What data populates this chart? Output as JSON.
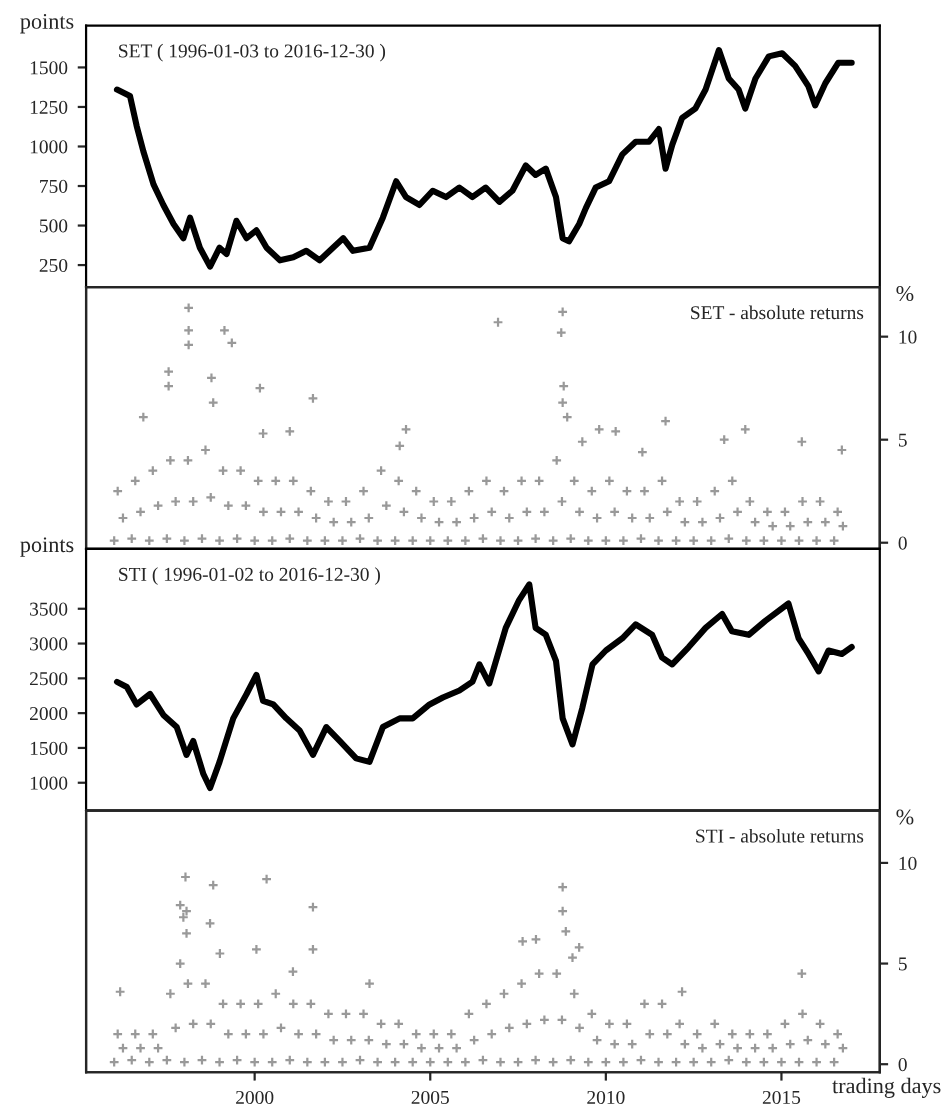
{
  "chart_data": [
    {
      "type": "line",
      "title": "SET ( 1996-01-03 to 2016-12-30 )",
      "ylabel": "points",
      "xlim": [
        1995.2,
        2017.8
      ],
      "xticks": [
        2000,
        2005,
        2010,
        2015
      ],
      "ylim": [
        110,
        1765
      ],
      "yticks": [
        250,
        500,
        750,
        1000,
        1250,
        1500
      ],
      "tick_labels": "y",
      "series": [
        {
          "color": "#000000",
          "x": [
            1996.08,
            1996.45,
            1996.64,
            1996.83,
            1997.12,
            1997.4,
            1997.69,
            1997.97,
            1998.16,
            1998.44,
            1998.73,
            1999.0,
            1999.2,
            1999.48,
            1999.77,
            2000.05,
            2000.34,
            2000.72,
            2001.1,
            2001.47,
            2001.85,
            2002.23,
            2002.52,
            2002.8,
            2003.27,
            2003.65,
            2004.03,
            2004.31,
            2004.69,
            2005.07,
            2005.45,
            2005.83,
            2006.2,
            2006.58,
            2006.97,
            2007.34,
            2007.72,
            2008.0,
            2008.29,
            2008.58,
            2008.77,
            2008.95,
            2009.24,
            2009.43,
            2009.71,
            2010.09,
            2010.47,
            2010.85,
            2011.23,
            2011.51,
            2011.7,
            2011.89,
            2012.17,
            2012.55,
            2012.84,
            2013.22,
            2013.5,
            2013.78,
            2013.97,
            2014.26,
            2014.64,
            2015.02,
            2015.39,
            2015.77,
            2015.96,
            2016.25,
            2016.62,
            2017.0
          ],
          "values": [
            1360,
            1320,
            1130,
            970,
            760,
            630,
            510,
            420,
            550,
            360,
            240,
            360,
            320,
            530,
            420,
            470,
            360,
            280,
            300,
            340,
            280,
            360,
            420,
            340,
            360,
            550,
            780,
            680,
            630,
            720,
            680,
            740,
            680,
            740,
            650,
            720,
            880,
            820,
            860,
            680,
            420,
            400,
            510,
            610,
            740,
            780,
            950,
            1030,
            1030,
            1110,
            860,
            1010,
            1180,
            1240,
            1360,
            1610,
            1430,
            1360,
            1240,
            1430,
            1570,
            1590,
            1510,
            1380,
            1260,
            1400,
            1530,
            1530
          ]
        }
      ]
    },
    {
      "type": "scatter",
      "annotations": [
        "SET - absolute returns"
      ],
      "y2label": "%",
      "xlim": [
        1995.2,
        2017.8
      ],
      "xticks": [
        2000,
        2005,
        2010,
        2015
      ],
      "y2lim": [
        -0.3,
        12.4
      ],
      "y2ticks": [
        0,
        5,
        10
      ],
      "tick_labels": "y",
      "marker": "cross",
      "series": [
        {
          "color": "#999999",
          "axis": "y2",
          "x": [
            1996.0,
            1996.5,
            1997.0,
            1997.5,
            1998.0,
            1998.5,
            1999.0,
            1999.5,
            2000.0,
            2000.5,
            2001.0,
            2001.5,
            2002.0,
            2002.5,
            2003.0,
            2003.5,
            2004.0,
            2004.5,
            2005.0,
            2005.5,
            2006.0,
            2006.5,
            2007.0,
            2007.5,
            2008.0,
            2008.5,
            2009.0,
            2009.5,
            2010.0,
            2010.5,
            2011.0,
            2011.5,
            2012.0,
            2012.5,
            2013.0,
            2013.5,
            2014.0,
            2014.5,
            2015.0,
            2015.5,
            2016.0,
            2016.5,
            1996.25,
            1996.75,
            1997.25,
            1997.75,
            1998.25,
            1998.75,
            1999.25,
            1999.75,
            2000.25,
            2000.75,
            2001.25,
            2001.75,
            2002.25,
            2002.75,
            2003.25,
            2003.75,
            2004.25,
            2004.75,
            2005.25,
            2005.75,
            2006.25,
            2006.75,
            2007.25,
            2007.75,
            2008.25,
            2008.75,
            2009.25,
            2009.75,
            2010.25,
            2010.75,
            2011.25,
            2011.75,
            2012.25,
            2012.75,
            2013.25,
            2013.75,
            2014.25,
            2014.75,
            2015.25,
            2015.75,
            2016.25,
            2016.75,
            1996.1,
            1996.6,
            1997.1,
            1997.6,
            1998.1,
            1998.6,
            1999.1,
            1999.6,
            2000.1,
            2000.6,
            2001.1,
            2001.6,
            2002.1,
            2002.6,
            2003.1,
            2003.6,
            2004.1,
            2004.6,
            2005.1,
            2005.6,
            2006.1,
            2006.6,
            2007.1,
            2007.6,
            2008.1,
            2008.6,
            2009.1,
            2009.6,
            2010.1,
            2010.6,
            2011.1,
            2011.6,
            2012.1,
            2012.6,
            2013.1,
            2013.6,
            2014.1,
            2014.6,
            2015.1,
            2015.6,
            2016.1,
            2016.6,
            1998.12,
            1998.12,
            1998.12,
            1999.14,
            1999.35,
            1998.77,
            1997.55,
            1997.55,
            2000.15,
            2001.66,
            1996.83,
            1998.82,
            2006.93,
            2008.77,
            2008.73,
            2008.8,
            2008.77,
            2008.9,
            2009.81,
            2010.28,
            2011.7,
            2013.97,
            2013.37,
            2015.58,
            2016.72,
            2004.31,
            2004.13,
            2001.0,
            2000.24,
            2011.04,
            2009.33
          ],
          "values": [
            0.1,
            0.2,
            0.1,
            0.2,
            0.1,
            0.2,
            0.1,
            0.2,
            0.1,
            0.1,
            0.2,
            0.1,
            0.1,
            0.1,
            0.2,
            0.1,
            0.1,
            0.1,
            0.1,
            0.1,
            0.1,
            0.2,
            0.1,
            0.1,
            0.2,
            0.1,
            0.2,
            0.1,
            0.1,
            0.1,
            0.2,
            0.1,
            0.1,
            0.1,
            0.1,
            0.2,
            0.1,
            0.1,
            0.1,
            0.1,
            0.1,
            0.1,
            1.2,
            1.5,
            1.8,
            2.0,
            2.0,
            2.2,
            1.8,
            1.8,
            1.5,
            1.5,
            1.5,
            1.2,
            1.0,
            1.0,
            1.2,
            1.8,
            1.5,
            1.2,
            1.0,
            1.0,
            1.2,
            1.5,
            1.2,
            1.5,
            1.5,
            2.0,
            1.5,
            1.2,
            1.5,
            1.2,
            1.2,
            1.5,
            1.0,
            1.0,
            1.2,
            1.5,
            1.0,
            0.8,
            0.8,
            1.0,
            1.0,
            0.8,
            2.5,
            3.0,
            3.5,
            4.0,
            4.0,
            4.5,
            3.5,
            3.5,
            3.0,
            3.0,
            3.0,
            2.5,
            2.0,
            2.0,
            2.5,
            3.5,
            3.0,
            2.5,
            2.0,
            2.0,
            2.5,
            3.0,
            2.5,
            3.0,
            3.0,
            4.0,
            3.0,
            2.5,
            3.0,
            2.5,
            2.5,
            3.0,
            2.0,
            2.0,
            2.5,
            3.0,
            2.0,
            1.5,
            1.5,
            2.0,
            2.0,
            1.5,
            11.4,
            10.3,
            9.6,
            10.3,
            9.7,
            8.0,
            8.3,
            7.6,
            7.5,
            7.0,
            6.1,
            6.8,
            10.7,
            11.2,
            10.2,
            7.6,
            6.8,
            6.1,
            5.5,
            5.4,
            5.9,
            5.5,
            5.0,
            4.9,
            4.5,
            5.5,
            4.7,
            5.4,
            5.3,
            4.4,
            4.9
          ]
        }
      ]
    },
    {
      "type": "line",
      "title": "STI ( 1996-01-02 to 2016-12-30 )",
      "ylabel": "points",
      "xlim": [
        1995.2,
        2017.8
      ],
      "xticks": [
        2000,
        2005,
        2010,
        2015
      ],
      "ylim": [
        600,
        4360
      ],
      "yticks": [
        1000,
        1500,
        2000,
        2500,
        3000,
        3500
      ],
      "tick_labels": "y",
      "series": [
        {
          "color": "#000000",
          "x": [
            1996.08,
            1996.36,
            1996.64,
            1997.02,
            1997.4,
            1997.78,
            1998.06,
            1998.25,
            1998.54,
            1998.73,
            1999.0,
            1999.39,
            1999.77,
            2000.05,
            2000.24,
            2000.53,
            2000.9,
            2001.28,
            2001.66,
            2002.04,
            2002.42,
            2002.89,
            2003.27,
            2003.65,
            2004.13,
            2004.5,
            2004.98,
            2005.36,
            2005.83,
            2006.2,
            2006.4,
            2006.68,
            2007.15,
            2007.53,
            2007.82,
            2008.0,
            2008.29,
            2008.58,
            2008.77,
            2009.05,
            2009.33,
            2009.62,
            2010.0,
            2010.47,
            2010.85,
            2011.32,
            2011.6,
            2011.89,
            2012.36,
            2012.84,
            2013.31,
            2013.59,
            2014.07,
            2014.54,
            2015.2,
            2015.49,
            2015.77,
            2016.06,
            2016.34,
            2016.72,
            2017.0
          ],
          "values": [
            2450,
            2375,
            2125,
            2275,
            1975,
            1800,
            1400,
            1600,
            1125,
            925,
            1300,
            1925,
            2275,
            2550,
            2175,
            2125,
            1925,
            1750,
            1400,
            1800,
            1600,
            1350,
            1300,
            1800,
            1925,
            1925,
            2125,
            2225,
            2325,
            2450,
            2700,
            2425,
            3225,
            3625,
            3850,
            3225,
            3125,
            2750,
            1925,
            1550,
            2075,
            2700,
            2900,
            3075,
            3275,
            3125,
            2800,
            2700,
            2950,
            3225,
            3425,
            3175,
            3125,
            3325,
            3575,
            3075,
            2850,
            2600,
            2900,
            2850,
            2950
          ]
        }
      ]
    },
    {
      "type": "scatter",
      "annotations": [
        "STI - absolute returns"
      ],
      "y2label": "%",
      "xlabel": "trading days",
      "xlim": [
        1995.2,
        2017.8
      ],
      "xticks": [
        2000,
        2005,
        2010,
        2015
      ],
      "y2lim": [
        -0.4,
        12.6
      ],
      "y2ticks": [
        0,
        5,
        10
      ],
      "marker": "cross",
      "series": [
        {
          "color": "#999999",
          "axis": "y2",
          "x": [
            1996.0,
            1996.5,
            1997.0,
            1997.5,
            1998.0,
            1998.5,
            1999.0,
            1999.5,
            2000.0,
            2000.5,
            2001.0,
            2001.5,
            2002.0,
            2002.5,
            2003.0,
            2003.5,
            2004.0,
            2004.5,
            2005.0,
            2005.5,
            2006.0,
            2006.5,
            2007.0,
            2007.5,
            2008.0,
            2008.5,
            2009.0,
            2009.5,
            2010.0,
            2010.5,
            2011.0,
            2011.5,
            2012.0,
            2012.5,
            2013.0,
            2013.5,
            2014.0,
            2014.5,
            2015.0,
            2015.5,
            2016.0,
            2016.5,
            1996.25,
            1996.75,
            1997.25,
            1997.75,
            1998.25,
            1998.75,
            1999.25,
            1999.75,
            2000.25,
            2000.75,
            2001.25,
            2001.75,
            2002.25,
            2002.75,
            2003.25,
            2003.75,
            2004.25,
            2004.75,
            2005.25,
            2005.75,
            2006.25,
            2006.75,
            2007.25,
            2007.75,
            2008.25,
            2008.75,
            2009.25,
            2009.75,
            2010.25,
            2010.75,
            2011.25,
            2011.75,
            2012.25,
            2012.75,
            2013.25,
            2013.75,
            2014.25,
            2014.75,
            2015.25,
            2015.75,
            2016.25,
            2016.75,
            1996.1,
            1996.6,
            1997.1,
            1997.6,
            1998.1,
            1998.6,
            1999.1,
            1999.6,
            2000.1,
            2000.6,
            2001.1,
            2001.6,
            2002.1,
            2002.6,
            2003.1,
            2003.6,
            2004.1,
            2004.6,
            2005.1,
            2005.6,
            2006.1,
            2006.6,
            2007.1,
            2007.6,
            2008.1,
            2008.6,
            2009.1,
            2009.6,
            2010.1,
            2010.6,
            2011.1,
            2011.6,
            2012.1,
            2012.6,
            2013.1,
            2013.6,
            2014.1,
            2014.6,
            2015.1,
            2015.6,
            2016.1,
            2016.6,
            1998.03,
            1998.82,
            2000.34,
            2001.66,
            1997.88,
            1998.06,
            1997.97,
            1998.73,
            1998.06,
            2000.05,
            2001.66,
            2008.77,
            2008.77,
            2008.86,
            2007.63,
            2008.01,
            2009.24,
            1996.17,
            2015.58,
            1997.88,
            1999.01,
            2001.09,
            2003.27,
            2012.17,
            2009.05
          ],
          "values": [
            0.1,
            0.2,
            0.1,
            0.2,
            0.1,
            0.2,
            0.1,
            0.2,
            0.1,
            0.1,
            0.2,
            0.1,
            0.1,
            0.1,
            0.2,
            0.1,
            0.1,
            0.1,
            0.1,
            0.1,
            0.1,
            0.2,
            0.1,
            0.1,
            0.2,
            0.1,
            0.2,
            0.1,
            0.1,
            0.1,
            0.2,
            0.1,
            0.1,
            0.1,
            0.1,
            0.2,
            0.1,
            0.1,
            0.1,
            0.1,
            0.1,
            0.1,
            0.8,
            0.8,
            0.8,
            1.8,
            2.0,
            2.0,
            1.5,
            1.5,
            1.5,
            1.8,
            1.5,
            1.5,
            1.2,
            1.2,
            1.2,
            1.0,
            1.0,
            0.8,
            0.8,
            0.8,
            1.2,
            1.5,
            1.8,
            2.0,
            2.2,
            2.2,
            1.8,
            1.2,
            1.0,
            1.0,
            1.5,
            1.5,
            1.0,
            0.8,
            1.0,
            0.8,
            0.8,
            0.8,
            1.0,
            1.2,
            1.0,
            0.8,
            1.5,
            1.5,
            1.5,
            3.5,
            4.0,
            4.0,
            3.0,
            3.0,
            3.0,
            3.5,
            3.0,
            3.0,
            2.5,
            2.5,
            2.5,
            2.0,
            2.0,
            1.5,
            1.5,
            1.5,
            2.5,
            3.0,
            3.5,
            4.0,
            4.5,
            4.5,
            3.5,
            2.5,
            2.0,
            2.0,
            3.0,
            3.0,
            2.0,
            1.5,
            2.0,
            1.5,
            1.5,
            1.5,
            2.0,
            2.5,
            2.0,
            1.5,
            9.3,
            8.9,
            9.2,
            7.8,
            7.9,
            7.6,
            7.3,
            7.0,
            6.5,
            5.7,
            5.7,
            8.8,
            7.6,
            6.6,
            6.1,
            6.2,
            5.8,
            3.6,
            4.5,
            5.0,
            5.5,
            4.6,
            4.0,
            3.6,
            5.3
          ]
        }
      ]
    }
  ]
}
